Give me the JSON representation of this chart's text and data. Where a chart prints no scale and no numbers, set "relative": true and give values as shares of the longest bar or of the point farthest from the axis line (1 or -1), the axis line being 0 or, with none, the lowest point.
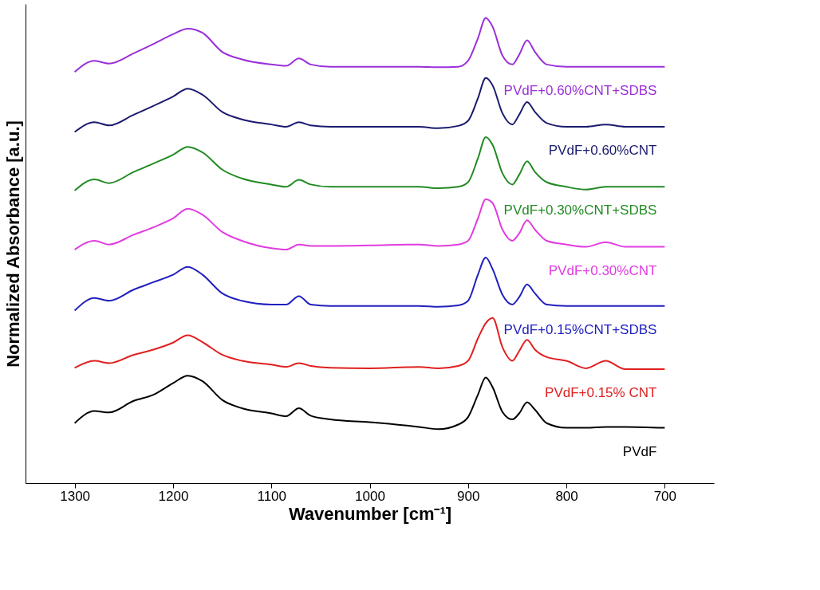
{
  "chart_data": {
    "type": "line",
    "relative": true,
    "xlabel": "Wavenumber [cm⁻¹]",
    "ylabel": "Normalized Absorbance [a.u.]",
    "xlim": [
      1350,
      650
    ],
    "xticks": [
      1300,
      1200,
      1100,
      1000,
      900,
      800,
      700
    ],
    "grid": false,
    "legend": false,
    "marker": "none",
    "line_style": "solid",
    "x": [
      1300,
      1280,
      1265,
      1240,
      1220,
      1200,
      1185,
      1170,
      1150,
      1130,
      1100,
      1085,
      1072,
      1060,
      1040,
      1000,
      950,
      930,
      910,
      900,
      890,
      882,
      875,
      865,
      855,
      848,
      840,
      832,
      820,
      800,
      780,
      760,
      740,
      700
    ],
    "series": [
      {
        "name": "PVdF",
        "color": "#000000",
        "values": [
          0.129,
          0.155,
          0.152,
          0.177,
          0.19,
          0.215,
          0.231,
          0.219,
          0.179,
          0.161,
          0.15,
          0.144,
          0.161,
          0.145,
          0.137,
          0.131,
          0.121,
          0.116,
          0.126,
          0.142,
          0.19,
          0.227,
          0.206,
          0.153,
          0.137,
          0.15,
          0.174,
          0.158,
          0.129,
          0.119,
          0.119,
          0.121,
          0.121,
          0.119
        ]
      },
      {
        "name": "PVdF+0.15% CNT",
        "color": "#e02020",
        "values": [
          0.248,
          0.263,
          0.258,
          0.276,
          0.287,
          0.302,
          0.318,
          0.303,
          0.276,
          0.263,
          0.255,
          0.25,
          0.258,
          0.252,
          0.248,
          0.247,
          0.25,
          0.247,
          0.252,
          0.263,
          0.311,
          0.344,
          0.355,
          0.292,
          0.263,
          0.284,
          0.308,
          0.287,
          0.271,
          0.263,
          0.247,
          0.263,
          0.245,
          0.245
        ]
      },
      {
        "name": "PVdF+0.15%CNT+SDBS",
        "color": "#2020c0",
        "values": [
          0.371,
          0.398,
          0.392,
          0.416,
          0.432,
          0.448,
          0.465,
          0.448,
          0.408,
          0.392,
          0.384,
          0.384,
          0.402,
          0.384,
          0.381,
          0.381,
          0.381,
          0.379,
          0.382,
          0.392,
          0.448,
          0.485,
          0.46,
          0.405,
          0.384,
          0.4,
          0.427,
          0.408,
          0.384,
          0.381,
          0.381,
          0.381,
          0.381,
          0.381
        ]
      },
      {
        "name": "PVdF+0.30%CNT",
        "color": "#e03ce0",
        "values": [
          0.502,
          0.521,
          0.513,
          0.534,
          0.55,
          0.569,
          0.59,
          0.577,
          0.54,
          0.521,
          0.505,
          0.502,
          0.513,
          0.51,
          0.51,
          0.511,
          0.513,
          0.51,
          0.513,
          0.521,
          0.569,
          0.61,
          0.602,
          0.545,
          0.521,
          0.537,
          0.565,
          0.545,
          0.521,
          0.513,
          0.508,
          0.518,
          0.508,
          0.508
        ]
      },
      {
        "name": "PVdF+0.30%CNT+SDBS",
        "color": "#228b22",
        "values": [
          0.629,
          0.653,
          0.645,
          0.669,
          0.687,
          0.706,
          0.723,
          0.711,
          0.674,
          0.655,
          0.642,
          0.637,
          0.652,
          0.642,
          0.637,
          0.637,
          0.637,
          0.634,
          0.637,
          0.647,
          0.698,
          0.744,
          0.727,
          0.666,
          0.642,
          0.663,
          0.692,
          0.669,
          0.647,
          0.637,
          0.631,
          0.637,
          0.637,
          0.637
        ]
      },
      {
        "name": "PVdF+0.60%CNT",
        "color": "#1a1a6e",
        "values": [
          0.755,
          0.776,
          0.769,
          0.792,
          0.811,
          0.831,
          0.848,
          0.835,
          0.798,
          0.782,
          0.771,
          0.766,
          0.776,
          0.769,
          0.766,
          0.766,
          0.766,
          0.763,
          0.768,
          0.779,
          0.827,
          0.871,
          0.855,
          0.795,
          0.771,
          0.792,
          0.819,
          0.798,
          0.774,
          0.766,
          0.766,
          0.771,
          0.766,
          0.766
        ]
      },
      {
        "name": "PVdF+0.60%CNT+SDBS",
        "color": "#9b30d9",
        "values": [
          0.884,
          0.908,
          0.902,
          0.924,
          0.944,
          0.965,
          0.977,
          0.968,
          0.927,
          0.911,
          0.9,
          0.897,
          0.913,
          0.9,
          0.895,
          0.895,
          0.895,
          0.894,
          0.895,
          0.908,
          0.956,
          1,
          0.981,
          0.919,
          0.9,
          0.921,
          0.952,
          0.927,
          0.9,
          0.895,
          0.895,
          0.895,
          0.895,
          0.895
        ]
      }
    ]
  }
}
